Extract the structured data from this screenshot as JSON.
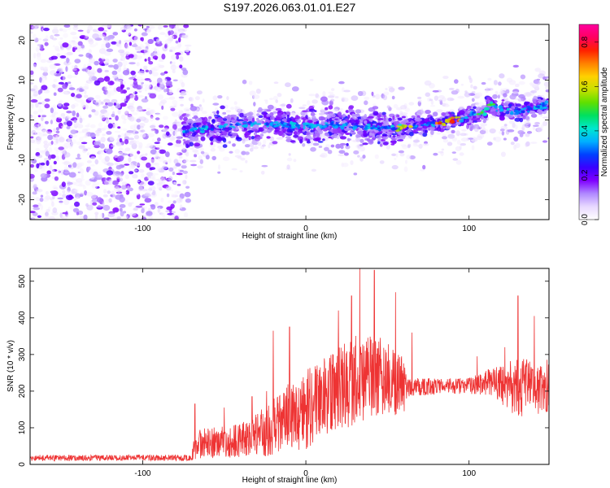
{
  "title": "S197.2026.063.01.01.E27",
  "chart_data": [
    {
      "type": "heatmap",
      "xlabel": "Height of straight line (km)",
      "ylabel": "Frequency (Hz)",
      "xlim": [
        -169,
        149
      ],
      "ylim": [
        -25,
        24
      ],
      "xticks": [
        -100,
        0,
        100
      ],
      "yticks": [
        -20,
        -10,
        0,
        10,
        20
      ],
      "trace_x": [
        -75,
        -60,
        -45,
        -30,
        -15,
        0,
        15,
        30,
        45,
        55,
        62,
        70,
        80,
        90,
        100,
        110,
        112,
        120,
        130,
        140,
        149
      ],
      "trace_y": [
        -3,
        -2,
        -1.5,
        -1,
        -1.2,
        -1.5,
        -1.3,
        -1.8,
        -2,
        -2,
        -1.8,
        -1.5,
        -1,
        0,
        1,
        2,
        4,
        2.5,
        2,
        3,
        4
      ],
      "colorbar": {
        "label": "Normalized spectral amplitude",
        "range": [
          0,
          0.88
        ],
        "ticks": [
          0.0,
          0.2,
          0.4,
          0.6,
          0.8
        ],
        "colors": [
          "#ffffff",
          "#e8d8ff",
          "#b088ff",
          "#8000ff",
          "#3a00ff",
          "#0040ff",
          "#00b0ff",
          "#00e8d0",
          "#00e060",
          "#60e000",
          "#c8e000",
          "#ffd000",
          "#ff8000",
          "#ff2000",
          "#ff0060",
          "#ff00a0"
        ]
      }
    },
    {
      "type": "line",
      "xlabel": "Height of straight line (km)",
      "ylabel": "SNR (10 * v/v)",
      "xlim": [
        -169,
        149
      ],
      "ylim": [
        0,
        535
      ],
      "xticks": [
        -100,
        0,
        100
      ],
      "yticks": [
        0,
        100,
        200,
        300,
        400,
        500
      ],
      "color": "#ee3333",
      "envelope": [
        {
          "x": -169,
          "base": 18,
          "spread": 8
        },
        {
          "x": -70,
          "base": 18,
          "spread": 8
        },
        {
          "x": -68,
          "base": 55,
          "spread": 40
        },
        {
          "x": -40,
          "base": 65,
          "spread": 45
        },
        {
          "x": -25,
          "base": 90,
          "spread": 70
        },
        {
          "x": -12,
          "base": 125,
          "spread": 90
        },
        {
          "x": 0,
          "base": 150,
          "spread": 110
        },
        {
          "x": 15,
          "base": 190,
          "spread": 110
        },
        {
          "x": 30,
          "base": 230,
          "spread": 125
        },
        {
          "x": 45,
          "base": 240,
          "spread": 110
        },
        {
          "x": 60,
          "base": 215,
          "spread": 80
        },
        {
          "x": 62,
          "base": 210,
          "spread": 25
        },
        {
          "x": 100,
          "base": 215,
          "spread": 22
        },
        {
          "x": 115,
          "base": 225,
          "spread": 40
        },
        {
          "x": 130,
          "base": 210,
          "spread": 85
        },
        {
          "x": 149,
          "base": 215,
          "spread": 75
        }
      ],
      "spikes": [
        {
          "x": -68,
          "y": 165
        },
        {
          "x": -50,
          "y": 155
        },
        {
          "x": -33,
          "y": 185
        },
        {
          "x": -24,
          "y": 200
        },
        {
          "x": -20,
          "y": 365
        },
        {
          "x": -10,
          "y": 375
        },
        {
          "x": 20,
          "y": 420
        },
        {
          "x": 28,
          "y": 460
        },
        {
          "x": 33,
          "y": 535
        },
        {
          "x": 42,
          "y": 530
        },
        {
          "x": 55,
          "y": 470
        },
        {
          "x": 65,
          "y": 360
        },
        {
          "x": 105,
          "y": 295
        },
        {
          "x": 122,
          "y": 320
        },
        {
          "x": 130,
          "y": 460
        },
        {
          "x": 140,
          "y": 405
        }
      ]
    }
  ]
}
